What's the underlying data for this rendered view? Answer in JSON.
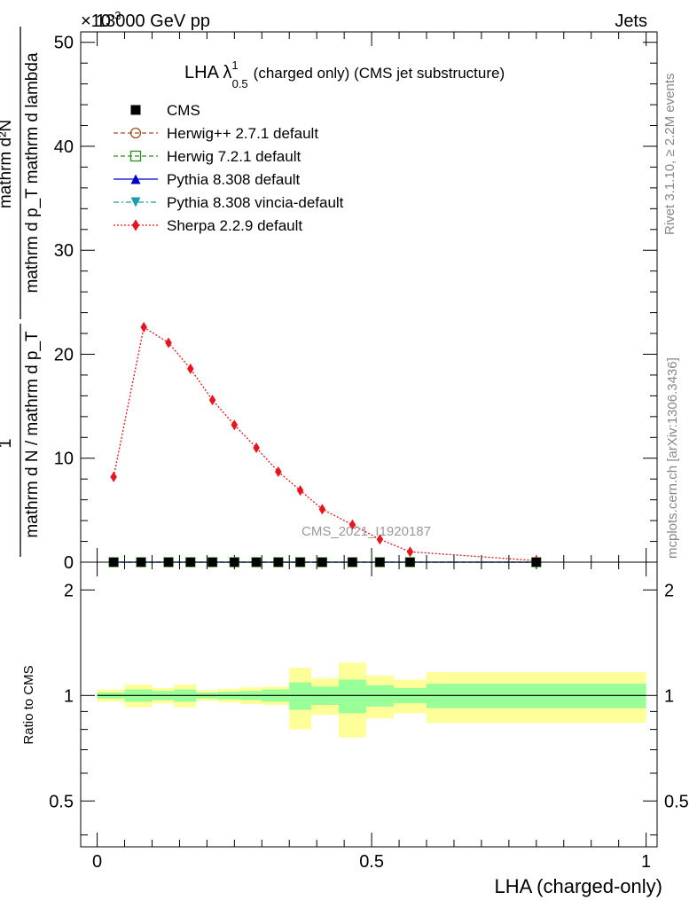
{
  "header": {
    "left": "13000 GeV pp",
    "right": "Jets",
    "exponent": "×10",
    "exponent_power": "-3"
  },
  "side_labels": {
    "rivet": "Rivet 3.1.10, ≥ 2.2M events",
    "mcplots": "mcplots.cern.ch [arXiv:1306.3436]"
  },
  "watermark": "CMS_2021_I1920187",
  "chart_data": [
    {
      "type": "line",
      "title_main": "LHA λ",
      "title_sup": "1",
      "title_sub": "0.5",
      "title_rest": "(charged only) (CMS jet substructure)",
      "ylabel": {
        "top_num": "mathrm d²N",
        "top_den": "mathrm d p_T mathrm d lambda",
        "left_num": "1",
        "left_den": "mathrm d N / mathrm d p_T"
      },
      "xlim": [
        -0.03,
        1.02
      ],
      "ylim": [
        0,
        51
      ],
      "y_scale_factor": "1e-3",
      "yticks": [
        0,
        10,
        20,
        30,
        40,
        50
      ],
      "legend_position": "top-left",
      "series": [
        {
          "name": "CMS",
          "color": "#000000",
          "marker": "square-filled",
          "line": "none",
          "x": [
            0.03,
            0.08,
            0.13,
            0.17,
            0.21,
            0.25,
            0.29,
            0.33,
            0.37,
            0.41,
            0.465,
            0.515,
            0.57,
            0.8
          ],
          "values": [
            0,
            0,
            0,
            0,
            0,
            0,
            0,
            0,
            0,
            0,
            0,
            0,
            0,
            0
          ]
        },
        {
          "name": "Herwig++ 2.7.1 default",
          "color": "#a0522d",
          "marker": "circle-open",
          "line": "dashed",
          "x": [
            0.03,
            0.08,
            0.13,
            0.17,
            0.21,
            0.25,
            0.29,
            0.33,
            0.37,
            0.41,
            0.465,
            0.515,
            0.57,
            0.8
          ],
          "values": [
            0,
            0,
            0,
            0,
            0,
            0,
            0,
            0,
            0,
            0,
            0,
            0,
            0,
            0
          ]
        },
        {
          "name": "Herwig 7.2.1 default",
          "color": "#2e8b1f",
          "marker": "square-open",
          "line": "dashed",
          "x": [
            0.03,
            0.08,
            0.13,
            0.17,
            0.21,
            0.25,
            0.29,
            0.33,
            0.37,
            0.41,
            0.465,
            0.515,
            0.57,
            0.8
          ],
          "values": [
            0,
            0,
            0,
            0,
            0,
            0,
            0,
            0,
            0,
            0,
            0,
            0,
            0,
            0
          ]
        },
        {
          "name": "Pythia 8.308 default",
          "color": "#0000cc",
          "marker": "triangle-up",
          "line": "solid",
          "x": [
            0.03,
            0.08,
            0.13,
            0.17,
            0.21,
            0.25,
            0.29,
            0.33,
            0.37,
            0.41,
            0.465,
            0.515,
            0.57,
            0.8
          ],
          "values": [
            0,
            0,
            0,
            0,
            0,
            0,
            0,
            0,
            0,
            0,
            0,
            0,
            0,
            0
          ]
        },
        {
          "name": "Pythia 8.308 vincia-default",
          "color": "#1a9cb0",
          "marker": "triangle-down",
          "line": "dashdot",
          "x": [
            0.03,
            0.08,
            0.13,
            0.17,
            0.21,
            0.25,
            0.29,
            0.33,
            0.37,
            0.41,
            0.465,
            0.515,
            0.57,
            0.8
          ],
          "values": [
            0,
            0,
            0,
            0,
            0,
            0,
            0,
            0,
            0,
            0,
            0,
            0,
            0,
            0
          ]
        },
        {
          "name": "Sherpa 2.2.9 default",
          "color": "#e8141e",
          "marker": "diamond",
          "line": "dotted",
          "x": [
            0.03,
            0.085,
            0.13,
            0.17,
            0.21,
            0.25,
            0.29,
            0.33,
            0.37,
            0.41,
            0.465,
            0.515,
            0.57,
            0.8
          ],
          "values": [
            8.2,
            22.6,
            21.1,
            18.6,
            15.6,
            13.2,
            11.0,
            8.7,
            6.9,
            5.1,
            3.6,
            2.2,
            1.0,
            0.15
          ]
        }
      ]
    },
    {
      "type": "area",
      "ylabel": "Ratio to CMS",
      "xlabel": "LHA (charged-only)",
      "xlim": [
        -0.03,
        1.02
      ],
      "ylim": [
        0.37,
        2.4
      ],
      "y_scale": "log",
      "yticks": [
        0.5,
        1,
        2
      ],
      "xticks": [
        0,
        0.5,
        1
      ],
      "reference_line": 1,
      "bins": [
        0,
        0.05,
        0.1,
        0.14,
        0.18,
        0.22,
        0.26,
        0.3,
        0.35,
        0.39,
        0.44,
        0.49,
        0.54,
        0.6,
        1.0
      ],
      "inner_band_lo": [
        0.98,
        0.96,
        0.97,
        0.96,
        0.98,
        0.975,
        0.97,
        0.96,
        0.91,
        0.94,
        0.89,
        0.93,
        0.95,
        0.92
      ],
      "inner_band_hi": [
        1.02,
        1.04,
        1.03,
        1.04,
        1.02,
        1.025,
        1.03,
        1.04,
        1.09,
        1.06,
        1.11,
        1.07,
        1.05,
        1.08
      ],
      "outer_band_lo": [
        0.96,
        0.925,
        0.95,
        0.925,
        0.965,
        0.955,
        0.945,
        0.94,
        0.8,
        0.88,
        0.76,
        0.86,
        0.89,
        0.835
      ],
      "outer_band_hi": [
        1.04,
        1.075,
        1.05,
        1.075,
        1.035,
        1.045,
        1.055,
        1.06,
        1.2,
        1.12,
        1.24,
        1.14,
        1.11,
        1.165
      ],
      "inner_color": "#99ff99",
      "outer_color": "#ffff99"
    }
  ]
}
